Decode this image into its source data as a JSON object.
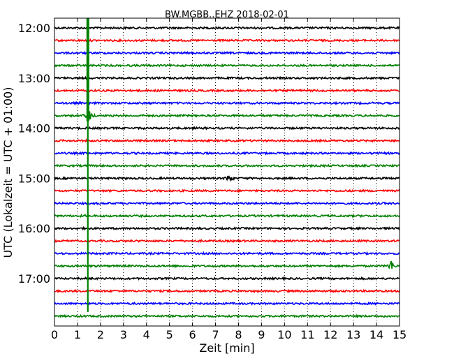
{
  "chart_data": {
    "type": "line",
    "title": "BW.MGBB..EHZ 2018-02-01",
    "xlabel": "Zeit  [min]",
    "ylabel": "UTC (Lokalzeit = UTC + 01:00)",
    "xlim": [
      0,
      15
    ],
    "x_ticks": [
      0,
      1,
      2,
      3,
      4,
      5,
      6,
      7,
      8,
      9,
      10,
      11,
      12,
      13,
      14,
      15
    ],
    "x_tick_labels": [
      "0",
      "1",
      "2",
      "3",
      "4",
      "5",
      "6",
      "7",
      "8",
      "9",
      "10",
      "11",
      "12",
      "13",
      "14",
      "15"
    ],
    "y_ticks": [
      "12:00",
      "13:00",
      "14:00",
      "15:00",
      "16:00",
      "17:00"
    ],
    "grid": "vertical dotted",
    "trace_interval_minutes": 15,
    "trace_count": 24,
    "trace_colors": [
      "#000000",
      "#ff0000",
      "#0000ff",
      "#008000"
    ],
    "traces": [
      {
        "start": "12:00"
      },
      {
        "start": "12:15"
      },
      {
        "start": "12:30"
      },
      {
        "start": "12:45"
      },
      {
        "start": "13:00"
      },
      {
        "start": "13:15"
      },
      {
        "start": "13:30"
      },
      {
        "start": "13:45"
      },
      {
        "start": "14:00"
      },
      {
        "start": "14:15"
      },
      {
        "start": "14:30"
      },
      {
        "start": "14:45"
      },
      {
        "start": "15:00"
      },
      {
        "start": "15:15"
      },
      {
        "start": "15:30"
      },
      {
        "start": "15:45"
      },
      {
        "start": "16:00"
      },
      {
        "start": "16:15"
      },
      {
        "start": "16:30"
      },
      {
        "start": "16:45"
      },
      {
        "start": "17:00"
      },
      {
        "start": "17:15"
      },
      {
        "start": "17:30"
      },
      {
        "start": "17:45"
      }
    ],
    "events": [
      {
        "trace_start": "13:45",
        "x_min": 1.5,
        "amplitude": "large"
      },
      {
        "trace_start": "15:00",
        "x_min": 7.6,
        "amplitude": "small"
      },
      {
        "trace_start": "16:45",
        "x_min": 14.65,
        "amplitude": "medium"
      }
    ],
    "spike_line": {
      "x_min": 1.45,
      "from": "11:57",
      "to": "17:40",
      "color": "#008000"
    }
  }
}
